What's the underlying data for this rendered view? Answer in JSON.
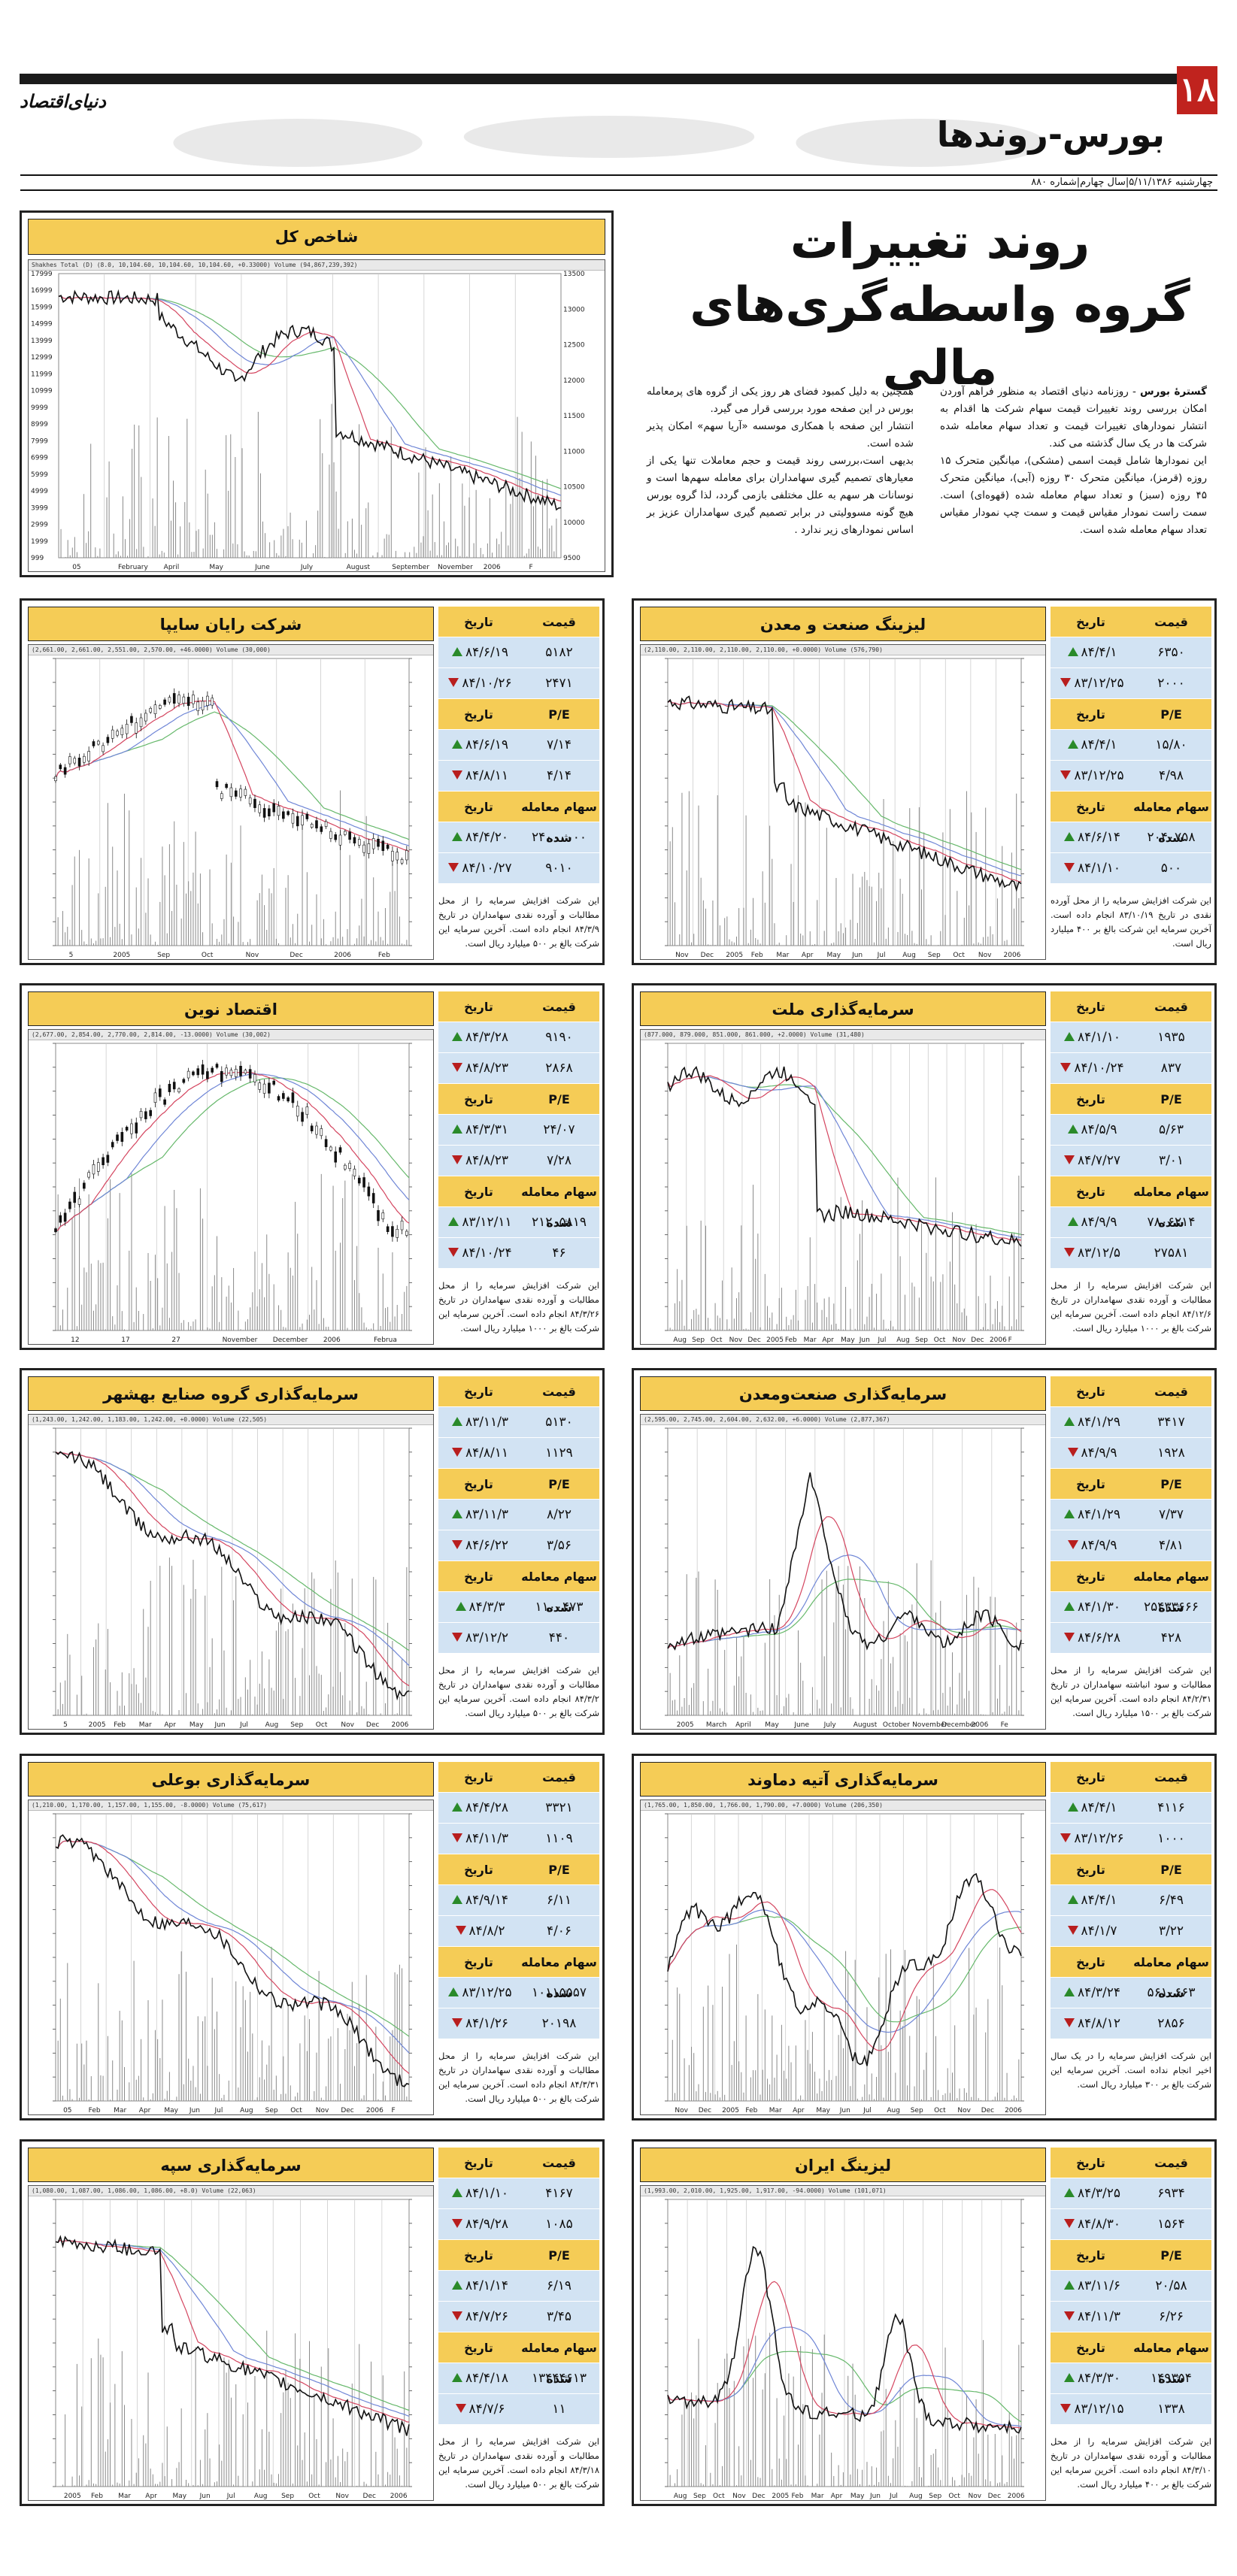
{
  "header": {
    "page_number": "۱۸",
    "section": "بورس-روندها",
    "logo": "دنیای‌اقتصاد",
    "issue_line": "چهارشنبه ۵/۱۱/۱۳۸۶|سال چهارم|شماره ۸۸۰"
  },
  "article": {
    "title_line1": "روند تغییرات",
    "title_line2": "گروه واسطه‌گری‌های مالی",
    "para1_lead": "گسترۀ بورس",
    "para1": " - روزنامه دنیای اقتصاد به منظور فراهم آوردن امکان بررسی روند تغییرات قیمت سهام شرکت ها اقدام به انتشار نمودارهای تغییرات قیمت و تعداد سهام معامله شده شرکت ها در یک سال گذشته می کند.",
    "para2": "این نمودارها شامل قیمت اسمی (مشکی)، میانگین متحرک ۱۵ روزه (قرمز)، میانگین متحرک ۳۰ روزه (آبی)، میانگین متحرک ۴۵ روزه (سبز) و تعداد سهام معامله شده (قهوه‌ای) است. سمت راست نمودار مقیاس قیمت و سمت چپ نمودار مقیاس تعداد سهام معامله شده است.",
    "para3": "همچنین به دلیل کمبود فضای هر روز یکی از گروه های پرمعامله بورس در این صفحه مورد بررسی قرار می گیرد.",
    "para4": "انتشار این صفحه با همکاری موسسه «آریا سهم» امکان پذیر شده است.",
    "para5": "بدیهی است،بررسی روند قیمت و حجم معاملات تنها یکی از معیارهای تصمیم گیری سهامداران برای معامله سهم‌ها است و نوسانات هر سهم به علل مختلفی بازمی گردد، لذا گروه بورس هیچ گونه مسوولیتی در برابر تصمیم گیری سهامداران عزیز بر اساس نمودارهای زیر ندارد ."
  },
  "labels": {
    "price": "قیمت",
    "date": "تاریخ",
    "pe": "P/E",
    "volume": "سهام معامله شده"
  },
  "index_chart": {
    "title": "شاخص کل",
    "strip": "Shakhes Total (D)   (8.0, 10,104.60, 10,104.60, 10,104.60, +0.33000)  Volume  (94,867,239,392)",
    "x_labels": [
      "05",
      "February",
      "April",
      "May",
      "June",
      "July",
      "August",
      "September",
      "November",
      "2006",
      "F"
    ],
    "left_ticks": [
      "17999",
      "16999",
      "15999",
      "14999",
      "13999",
      "12999",
      "11999",
      "10999",
      "9999",
      "8999",
      "7999",
      "6999",
      "5999",
      "4999",
      "3999",
      "2999",
      "1999",
      "999"
    ],
    "right_ticks": [
      "13500",
      "13000",
      "12500",
      "12000",
      "11500",
      "11000",
      "10500",
      "10000",
      "9500"
    ]
  },
  "companies": [
    {
      "name": "لیزینگ صنعت و معدن",
      "strip": "(2,110.00, 2,110.00, 2,110.00, 2,110.00, +0.0000)  Volume (576,790)",
      "x_labels": [
        "Nov",
        "Dec",
        "2005",
        "Feb",
        "Mar",
        "Apr",
        "May",
        "Jun",
        "Jul",
        "Aug",
        "Sep",
        "Oct",
        "Nov",
        "2006"
      ],
      "prices": [
        {
          "v": "۶۳۵۰",
          "d": "۸۴/۴/۱",
          "t": "up"
        },
        {
          "v": "۲۰۰۰",
          "d": "۸۳/۱۲/۲۵",
          "t": "dn"
        }
      ],
      "pe": [
        {
          "v": "۱۵/۸۰",
          "d": "۸۴/۴/۱",
          "t": "up"
        },
        {
          "v": "۴/۹۸",
          "d": "۸۳/۱۲/۲۵",
          "t": "dn"
        }
      ],
      "vol": [
        {
          "v": "۲۰۴۰۷۵۸",
          "d": "۸۴/۶/۱۴",
          "t": "up"
        },
        {
          "v": "۵۰۰",
          "d": "۸۴/۱/۱۰",
          "t": "dn"
        }
      ],
      "note": "این شرکت افزایش سرمایه را از محل آورده نقدی در تاریخ ۸۳/۱۰/۱۹ انجام داده است. آخرین سرمایه این شرکت بالغ بر ۴۰۰ میلیارد ریال است."
    },
    {
      "name": "شرکت رایان سایپا",
      "strip": "(2,661.00, 2,661.00, 2,551.00, 2,570.00, +46.0000)  Volume (30,000)",
      "x_labels": [
        "5",
        "2005",
        "Sep",
        "Oct",
        "Nov",
        "Dec",
        "2006",
        "Feb"
      ],
      "prices": [
        {
          "v": "۵۱۸۲",
          "d": "۸۴/۶/۱۹",
          "t": "up"
        },
        {
          "v": "۲۴۷۱",
          "d": "۸۴/۱۰/۲۶",
          "t": "dn"
        }
      ],
      "pe": [
        {
          "v": "۷/۱۴",
          "d": "۸۴/۶/۱۹",
          "t": "up"
        },
        {
          "v": "۴/۱۴",
          "d": "۸۴/۸/۱۱",
          "t": "dn"
        }
      ],
      "vol": [
        {
          "v": "۲۴۰۰۰۰۰۰",
          "d": "۸۴/۴/۲۰",
          "t": "up"
        },
        {
          "v": "۹۰۱۰",
          "d": "۸۴/۱۰/۲۷",
          "t": "dn"
        }
      ],
      "note": "این شرکت افزایش سرمایه را از محل مطالبات و آورده نقدی سهامداران در تاریخ ۸۴/۳/۹ انجام داده است. آخرین سرمایه این شرکت بالغ بر ۵۰۰ میلیارد ریال است."
    },
    {
      "name": "سرمایه‌گذاری ملت",
      "strip": "(877.000, 879.000, 851.000, 861.000, +2.0000)  Volume (31,480)",
      "x_labels": [
        "Aug",
        "Sep",
        "Oct",
        "Nov",
        "Dec",
        "2005",
        "Feb",
        "Mar",
        "Apr",
        "May",
        "Jun",
        "Jul",
        "Aug",
        "Sep",
        "Oct",
        "Nov",
        "Dec",
        "2006",
        "F"
      ],
      "prices": [
        {
          "v": "۱۹۳۵",
          "d": "۸۴/۱/۱۰",
          "t": "up"
        },
        {
          "v": "۸۳۷",
          "d": "۸۴/۱۰/۲۴",
          "t": "dn"
        }
      ],
      "pe": [
        {
          "v": "۵/۶۳",
          "d": "۸۴/۵/۹",
          "t": "up"
        },
        {
          "v": "۳/۰۱",
          "d": "۸۴/۷/۲۷",
          "t": "dn"
        }
      ],
      "vol": [
        {
          "v": "۷۸۰۶۲۱۴",
          "d": "۸۴/۹/۹",
          "t": "up"
        },
        {
          "v": "۲۷۵۸۱",
          "d": "۸۳/۱۲/۵",
          "t": "dn"
        }
      ],
      "note": "این شرکت افزایش سرمایه را از محل مطالبات و آورده نقدی سهامداران در تاریخ ۸۴/۱۲/۶ انجام داده است. آخرین سرمایه این شرکت بالغ بر ۱۰۰۰ میلیارد ریال است."
    },
    {
      "name": "اقتصاد نوین",
      "strip": "(2,677.00, 2,854.00, 2,770.00, 2,814.00, -13.0000)  Volume (30,002)",
      "x_labels": [
        "12",
        "17",
        "27",
        "November",
        "December",
        "2006",
        "Februa"
      ],
      "prices": [
        {
          "v": "۹۱۹۰",
          "d": "۸۴/۳/۲۸",
          "t": "up"
        },
        {
          "v": "۲۸۶۸",
          "d": "۸۴/۸/۲۳",
          "t": "dn"
        }
      ],
      "pe": [
        {
          "v": "۲۴/۰۷",
          "d": "۸۴/۳/۳۱",
          "t": "up"
        },
        {
          "v": "۷/۲۸",
          "d": "۸۴/۸/۲۳",
          "t": "dn"
        }
      ],
      "vol": [
        {
          "v": "۲۱۲۰۵۸۱۹",
          "d": "۸۳/۱۲/۱۱",
          "t": "up"
        },
        {
          "v": "۴۶",
          "d": "۸۴/۱۰/۲۴",
          "t": "dn"
        }
      ],
      "note": "این شرکت افزایش سرمایه را از محل مطالبات و آورده نقدی سهامداران در تاریخ ۸۴/۳/۲۶ انجام داده است. آخرین سرمایه این شرکت بالغ بر ۱۰۰۰ میلیارد ریال است."
    },
    {
      "name": "سرمایه‌گذاری صنعت‌ومعدن",
      "strip": "(2,595.00, 2,745.00, 2,604.00, 2,632.00, +6.0000)  Volume (2,877,367)",
      "x_labels": [
        "2005",
        "March",
        "April",
        "May",
        "June",
        "July",
        "August",
        "October",
        "November",
        "December",
        "2006",
        "Fe"
      ],
      "prices": [
        {
          "v": "۳۴۱۷",
          "d": "۸۴/۱/۲۹",
          "t": "up"
        },
        {
          "v": "۱۹۲۸",
          "d": "۸۴/۹/۹",
          "t": "dn"
        }
      ],
      "pe": [
        {
          "v": "۷/۳۷",
          "d": "۸۴/۱/۲۹",
          "t": "up"
        },
        {
          "v": "۴/۸۱",
          "d": "۸۴/۹/۹",
          "t": "dn"
        }
      ],
      "vol": [
        {
          "v": "۲۵۴۳۳۶۶۶",
          "d": "۸۴/۱/۳۰",
          "t": "up"
        },
        {
          "v": "۴۲۸",
          "d": "۸۴/۶/۲۸",
          "t": "dn"
        }
      ],
      "note": "این شرکت افزایش سرمایه را از محل مطالبات و سود انباشته سهامداران در تاریخ ۸۴/۲/۳۱ انجام داده است. آخرین سرمایه این شرکت بالغ بر ۱۵۰۰ میلیارد ریال است."
    },
    {
      "name": "سرمایه‌گذاری گروه صنایع بهشهر",
      "strip": "(1,243.00, 1,242.00, 1,183.00, 1,242.00, +0.0000)  Volume (22,505)",
      "x_labels": [
        "5",
        "2005",
        "Feb",
        "Mar",
        "Apr",
        "May",
        "Jun",
        "Jul",
        "Aug",
        "Sep",
        "Oct",
        "Nov",
        "Dec",
        "2006"
      ],
      "prices": [
        {
          "v": "۵۱۳۰",
          "d": "۸۳/۱۱/۳",
          "t": "up"
        },
        {
          "v": "۱۱۲۹",
          "d": "۸۴/۸/۱۱",
          "t": "dn"
        }
      ],
      "pe": [
        {
          "v": "۸/۲۲",
          "d": "۸۳/۱۱/۳",
          "t": "up"
        },
        {
          "v": "۳/۵۶",
          "d": "۸۴/۶/۲۲",
          "t": "dn"
        }
      ],
      "vol": [
        {
          "v": "۱۱۰۰۴۷۳",
          "d": "۸۴/۳/۳",
          "t": "up"
        },
        {
          "v": "۴۴۰",
          "d": "۸۳/۱۲/۲",
          "t": "dn"
        }
      ],
      "note": "این شرکت افزایش سرمایه را از محل مطالبات و آورده نقدی سهامداران در تاریخ ۸۴/۳/۲ انجام داده است. آخرین سرمایه این شرکت بالغ بر ۵۰۰ میلیارد ریال است."
    },
    {
      "name": "سرمایه‌گذاری آتیه دماوند",
      "strip": "(1,765.00, 1,850.00, 1,766.00, 1,790.00, +7.0000)  Volume (206,350)",
      "x_labels": [
        "Nov",
        "Dec",
        "2005",
        "Feb",
        "Mar",
        "Apr",
        "May",
        "Jun",
        "Jul",
        "Aug",
        "Sep",
        "Oct",
        "Nov",
        "Dec",
        "2006"
      ],
      "prices": [
        {
          "v": "۴۱۱۶",
          "d": "۸۴/۴/۱",
          "t": "up"
        },
        {
          "v": "۱۰۰۰",
          "d": "۸۳/۱۲/۲۶",
          "t": "dn"
        }
      ],
      "pe": [
        {
          "v": "۶/۴۹",
          "d": "۸۴/۴/۱",
          "t": "up"
        },
        {
          "v": "۳/۲۲",
          "d": "۸۴/۱/۷",
          "t": "dn"
        }
      ],
      "vol": [
        {
          "v": "۵۶۱۰۶۶۳",
          "d": "۸۴/۳/۲۴",
          "t": "up"
        },
        {
          "v": "۲۸۵۶",
          "d": "۸۴/۸/۱۲",
          "t": "dn"
        }
      ],
      "note": "این شرکت افزایش سرمایه را در یک سال اخیر انجام نداده است. آخرین سرمایه این شرکت بالغ بر ۳۰۰ میلیارد ریال است."
    },
    {
      "name": "سرمایه‌گذاری بوعلی",
      "strip": "(1,210.00, 1,170.00, 1,157.00, 1,155.00, -8.0000)  Volume (75,617)",
      "x_labels": [
        "05",
        "Feb",
        "Mar",
        "Apr",
        "May",
        "Jun",
        "Jul",
        "Aug",
        "Sep",
        "Oct",
        "Nov",
        "Dec",
        "2006",
        "F"
      ],
      "prices": [
        {
          "v": "۳۳۲۱",
          "d": "۸۴/۴/۲۸",
          "t": "up"
        },
        {
          "v": "۱۱۰۹",
          "d": "۸۴/۱۱/۳",
          "t": "dn"
        }
      ],
      "pe": [
        {
          "v": "۶/۱۱",
          "d": "۸۴/۹/۱۴",
          "t": "up"
        },
        {
          "v": "۴/۰۶",
          "d": "۸۴/۸/۲",
          "t": "dn"
        }
      ],
      "vol": [
        {
          "v": "۱۰۱۱۵۵۵۷",
          "d": "۸۳/۱۲/۲۵",
          "t": "up"
        },
        {
          "v": "۲۰۱۹۸",
          "d": "۸۴/۱/۲۶",
          "t": "dn"
        }
      ],
      "note": "این شرکت افزایش سرمایه را از محل مطالبات و آورده نقدی سهامداران در تاریخ ۸۴/۳/۳۱ انجام داده است. آخرین سرمایه این شرکت بالغ بر ۵۰۰ میلیارد ریال است."
    },
    {
      "name": "لیزینگ ایران",
      "strip": "(1,993.00, 2,010.00, 1,925.00, 1,917.00, -94.0000)  Volume (101,071)",
      "x_labels": [
        "Aug",
        "Sep",
        "Oct",
        "Nov",
        "Dec",
        "2005",
        "Feb",
        "Mar",
        "Apr",
        "May",
        "Jun",
        "Jul",
        "Aug",
        "Sep",
        "Oct",
        "Nov",
        "Dec",
        "2006"
      ],
      "prices": [
        {
          "v": "۶۹۳۴",
          "d": "۸۴/۳/۲۵",
          "t": "up"
        },
        {
          "v": "۱۵۶۴",
          "d": "۸۴/۸/۳۰",
          "t": "dn"
        }
      ],
      "pe": [
        {
          "v": "۲۰/۵۸",
          "d": "۸۳/۱۱/۶",
          "t": "up"
        },
        {
          "v": "۶/۲۶",
          "d": "۸۴/۱۱/۳",
          "t": "dn"
        }
      ],
      "vol": [
        {
          "v": "۱۴۹۳۵۴",
          "d": "۸۴/۳/۳۰",
          "t": "up"
        },
        {
          "v": "۱۳۳۸",
          "d": "۸۳/۱۲/۱۵",
          "t": "dn"
        }
      ],
      "note": "این شرکت افزایش سرمایه را از محل مطالبات و آورده نقدی سهامداران در تاریخ ۸۴/۳/۱۰ انجام داده است. آخرین سرمایه این شرکت بالغ بر ۴۰۰ میلیارد ریال است."
    },
    {
      "name": "سرمایه‌گذاری سپه",
      "strip": "(1,080.00, 1,087.00, 1,086.00, 1,086.00, +8.0)  Volume (22,063)",
      "x_labels": [
        "2005",
        "Feb",
        "Mar",
        "Apr",
        "May",
        "Jun",
        "Jul",
        "Aug",
        "Sep",
        "Oct",
        "Nov",
        "Dec",
        "2006"
      ],
      "prices": [
        {
          "v": "۴۱۶۷",
          "d": "۸۴/۱/۱۰",
          "t": "up"
        },
        {
          "v": "۱۰۸۵",
          "d": "۸۴/۹/۲۸",
          "t": "dn"
        }
      ],
      "pe": [
        {
          "v": "۶/۱۹",
          "d": "۸۴/۱/۱۴",
          "t": "up"
        },
        {
          "v": "۳/۴۵",
          "d": "۸۴/۷/۲۶",
          "t": "dn"
        }
      ],
      "vol": [
        {
          "v": "۱۳۴۴۴۶۱۳",
          "d": "۸۴/۴/۱۸",
          "t": "up"
        },
        {
          "v": "۱۱",
          "d": "۸۴/۷/۶",
          "t": "dn"
        }
      ],
      "note": "این شرکت افزایش سرمایه را از محل مطالبات و آورده نقدی سهامداران در تاریخ ۸۴/۳/۱۸ انجام داده است. آخرین سرمایه این شرکت بالغ بر ۵۰۰ میلیارد ریال است."
    }
  ],
  "colors": {
    "accent": "#f5cc56",
    "table_row": "#d2e3f3",
    "up": "#2a8a2a",
    "down": "#b81e1e",
    "ma15": "#d4455f",
    "ma30": "#6f86d6",
    "ma45": "#66b86b"
  }
}
